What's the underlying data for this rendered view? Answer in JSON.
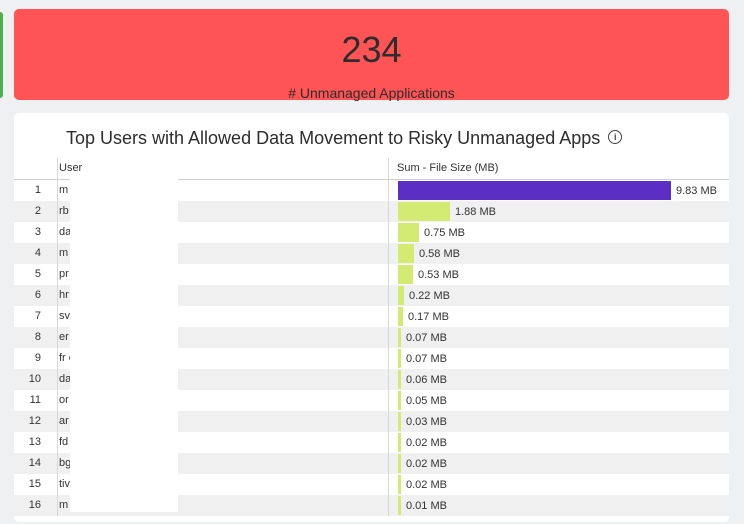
{
  "kpi": {
    "value": "234",
    "label": "# Unmanaged Applications",
    "color": "#fe5455"
  },
  "table": {
    "title": "Top Users with Allowed Data Movement to Risky Unmanaged Apps",
    "info_icon": "info-icon",
    "columns": [
      "User",
      "Sum - File Size (MB)"
    ],
    "colors": {
      "max_bar": "#5b2fc4",
      "other_bar": "#d3ea73"
    },
    "rows": [
      {
        "index": "1",
        "user": "m                          .com",
        "size_label": "9.83 MB",
        "size_mb": 9.83
      },
      {
        "index": "2",
        "user": "rb                         kope.com",
        "size_label": "1.88 MB",
        "size_mb": 1.88
      },
      {
        "index": "3",
        "user": "da                         .com",
        "size_label": "0.75 MB",
        "size_mb": 0.75
      },
      {
        "index": "4",
        "user": "m                         e.com",
        "size_label": "0.58 MB",
        "size_mb": 0.58
      },
      {
        "index": "5",
        "user": "pr                         e.com",
        "size_label": "0.53 MB",
        "size_mb": 0.53
      },
      {
        "index": "6",
        "user": "hr                         e.com",
        "size_label": "0.22 MB",
        "size_mb": 0.22
      },
      {
        "index": "7",
        "user": "sv",
        "size_label": "0.17 MB",
        "size_mb": 0.17
      },
      {
        "index": "8",
        "user": "er                        kope.com",
        "size_label": "0.07 MB",
        "size_mb": 0.07
      },
      {
        "index": "9",
        "user": "fr                         com",
        "size_label": "0.07 MB",
        "size_mb": 0.07
      },
      {
        "index": "10",
        "user": "da                        m",
        "size_label": "0.06 MB",
        "size_mb": 0.06
      },
      {
        "index": "11",
        "user": "or                         .com",
        "size_label": "0.05 MB",
        "size_mb": 0.05
      },
      {
        "index": "12",
        "user": "ar                         tskope.com",
        "size_label": "0.03 MB",
        "size_mb": 0.03
      },
      {
        "index": "13",
        "user": "fd                         .com",
        "size_label": "0.02 MB",
        "size_mb": 0.02
      },
      {
        "index": "14",
        "user": "bg                         kope.com",
        "size_label": "0.02 MB",
        "size_mb": 0.02
      },
      {
        "index": "15",
        "user": "tiv                        com",
        "size_label": "0.02 MB",
        "size_mb": 0.02
      },
      {
        "index": "16",
        "user": "m",
        "size_label": "0.01 MB",
        "size_mb": 0.01
      }
    ]
  }
}
